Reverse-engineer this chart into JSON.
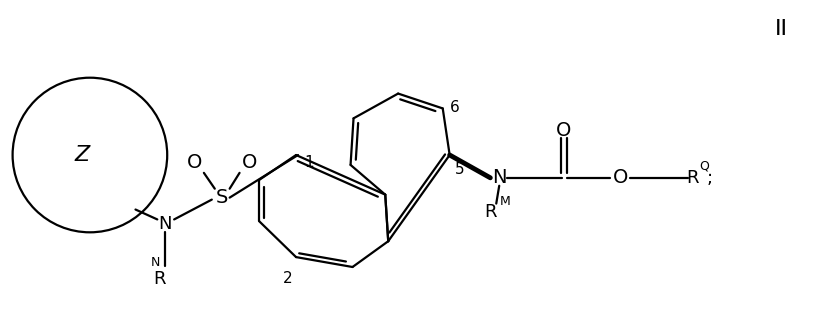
{
  "title": "II",
  "bg_color": "#ffffff",
  "line_color": "#000000",
  "label_Z": "Z",
  "label_N1": "N",
  "label_RN": "R",
  "label_RN_super": "N",
  "label_S": "S",
  "label_O1": "O",
  "label_O2": "O",
  "label_1": "1",
  "label_2": "2",
  "label_5": "5",
  "label_6": "6",
  "label_N2": "N",
  "label_RM": "R",
  "label_RM_super": "M",
  "label_O_carbonyl": "O",
  "label_O_ester": "O",
  "label_Q": "Q",
  "label_RQ": "R",
  "label_RQ_super": "Q",
  "label_semicolon": ";",
  "fontsize_main": 13,
  "lw": 1.6,
  "lw_bold": 3.5
}
